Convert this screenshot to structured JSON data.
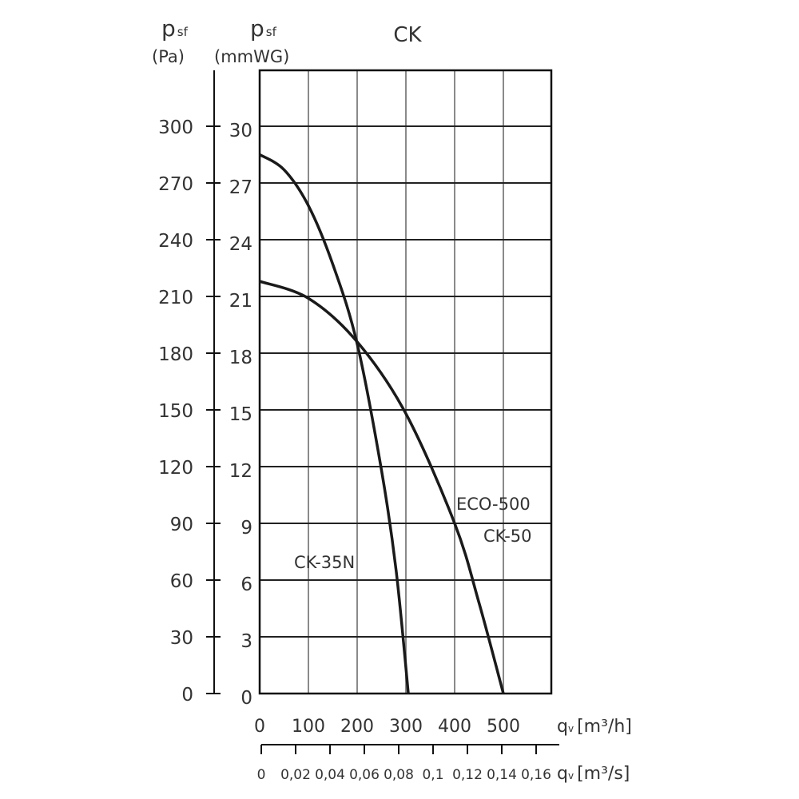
{
  "chart_data": {
    "type": "line",
    "title": "CK",
    "ylabel_left": {
      "symbol": "p",
      "sub": "sf",
      "unit": "(Pa)"
    },
    "ylabel_right": {
      "symbol": "p",
      "sub": "sf",
      "unit": "(mmWG)"
    },
    "xlabel_h": {
      "symbol": "q",
      "sub": "v",
      "unit": "[m³/h]"
    },
    "xlabel_s": {
      "symbol": "q",
      "sub": "v",
      "unit": "[m³/s]"
    },
    "xlim": [
      0,
      600
    ],
    "ylim_mmwg": [
      0,
      33
    ],
    "x_ticks_h": [
      "0",
      "100",
      "200",
      "300",
      "400",
      "500"
    ],
    "x_ticks_s": [
      "0",
      "0,02",
      "0,04",
      "0,06",
      "0,08",
      "0,1",
      "0,12",
      "0,14",
      "0,16"
    ],
    "y_ticks_pa": [
      "0",
      "30",
      "60",
      "90",
      "120",
      "150",
      "180",
      "210",
      "240",
      "270",
      "300"
    ],
    "y_ticks_mmwg": [
      "0",
      "3",
      "6",
      "9",
      "12",
      "15",
      "18",
      "21",
      "24",
      "27",
      "30"
    ],
    "grid": true,
    "series": [
      {
        "name": "CK-35N",
        "x": [
          0,
          50,
          100,
          150,
          200,
          250,
          280,
          305
        ],
        "y": [
          28.5,
          27.7,
          25.8,
          22.7,
          18.5,
          11.8,
          6.5,
          0
        ]
      },
      {
        "name": "ECO-500 CK-50",
        "labels": [
          "ECO-500",
          "CK-50"
        ],
        "x": [
          0,
          100,
          200,
          300,
          400,
          450,
          500
        ],
        "y": [
          21.8,
          20.9,
          18.6,
          14.8,
          9.0,
          4.8,
          0
        ]
      }
    ]
  }
}
